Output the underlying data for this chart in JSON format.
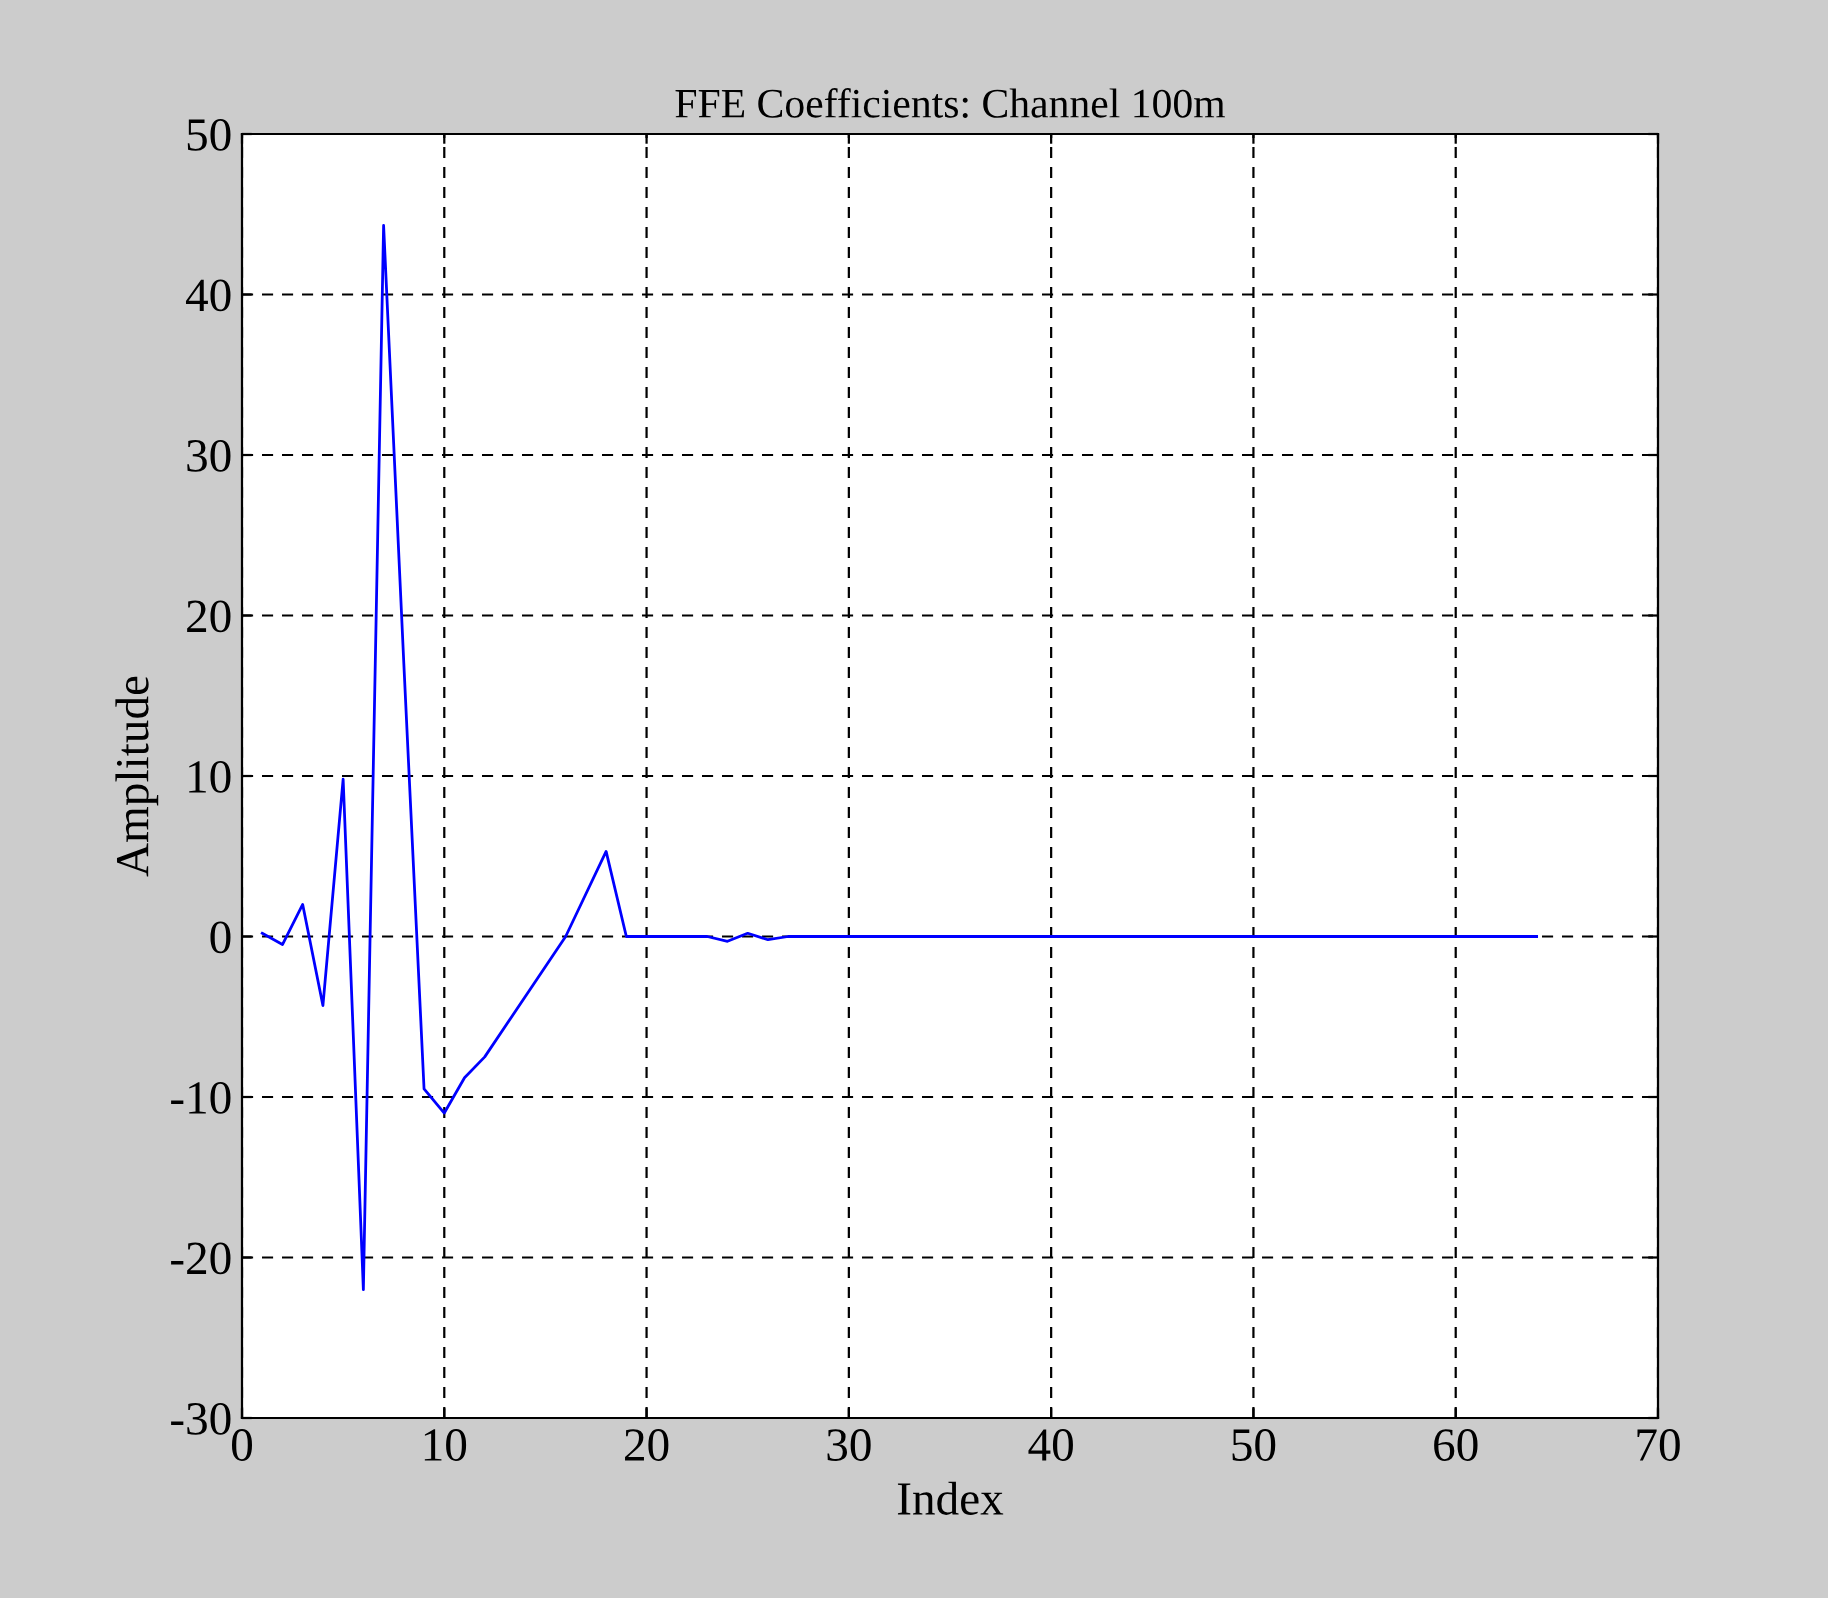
{
  "chart_data": {
    "type": "line",
    "title": "FFE Coefficients: Channel 100m",
    "xlabel": "Index",
    "ylabel": "Amplitude",
    "xlim": [
      0,
      70
    ],
    "xticks": [
      0,
      10,
      20,
      30,
      40,
      50,
      60,
      70
    ],
    "ylim": [
      -30,
      50
    ],
    "yticks": [
      -30,
      -20,
      -10,
      0,
      10,
      20,
      30,
      40,
      50
    ],
    "grid": true,
    "line_style": "solid",
    "series": [
      {
        "color": "#0000ff",
        "x": [
          1,
          2,
          3,
          4,
          5,
          6,
          7,
          8,
          9,
          10,
          11,
          12,
          16,
          18,
          19,
          23,
          24,
          25,
          26,
          27,
          28,
          64
        ],
        "values": [
          0.2,
          -0.5,
          2,
          -4.3,
          9.8,
          -22,
          44.3,
          17,
          -9.5,
          -11,
          -8.8,
          -7.5,
          0,
          5.3,
          0,
          0,
          -0.3,
          0.2,
          -0.2,
          0,
          0,
          0
        ]
      }
    ]
  }
}
